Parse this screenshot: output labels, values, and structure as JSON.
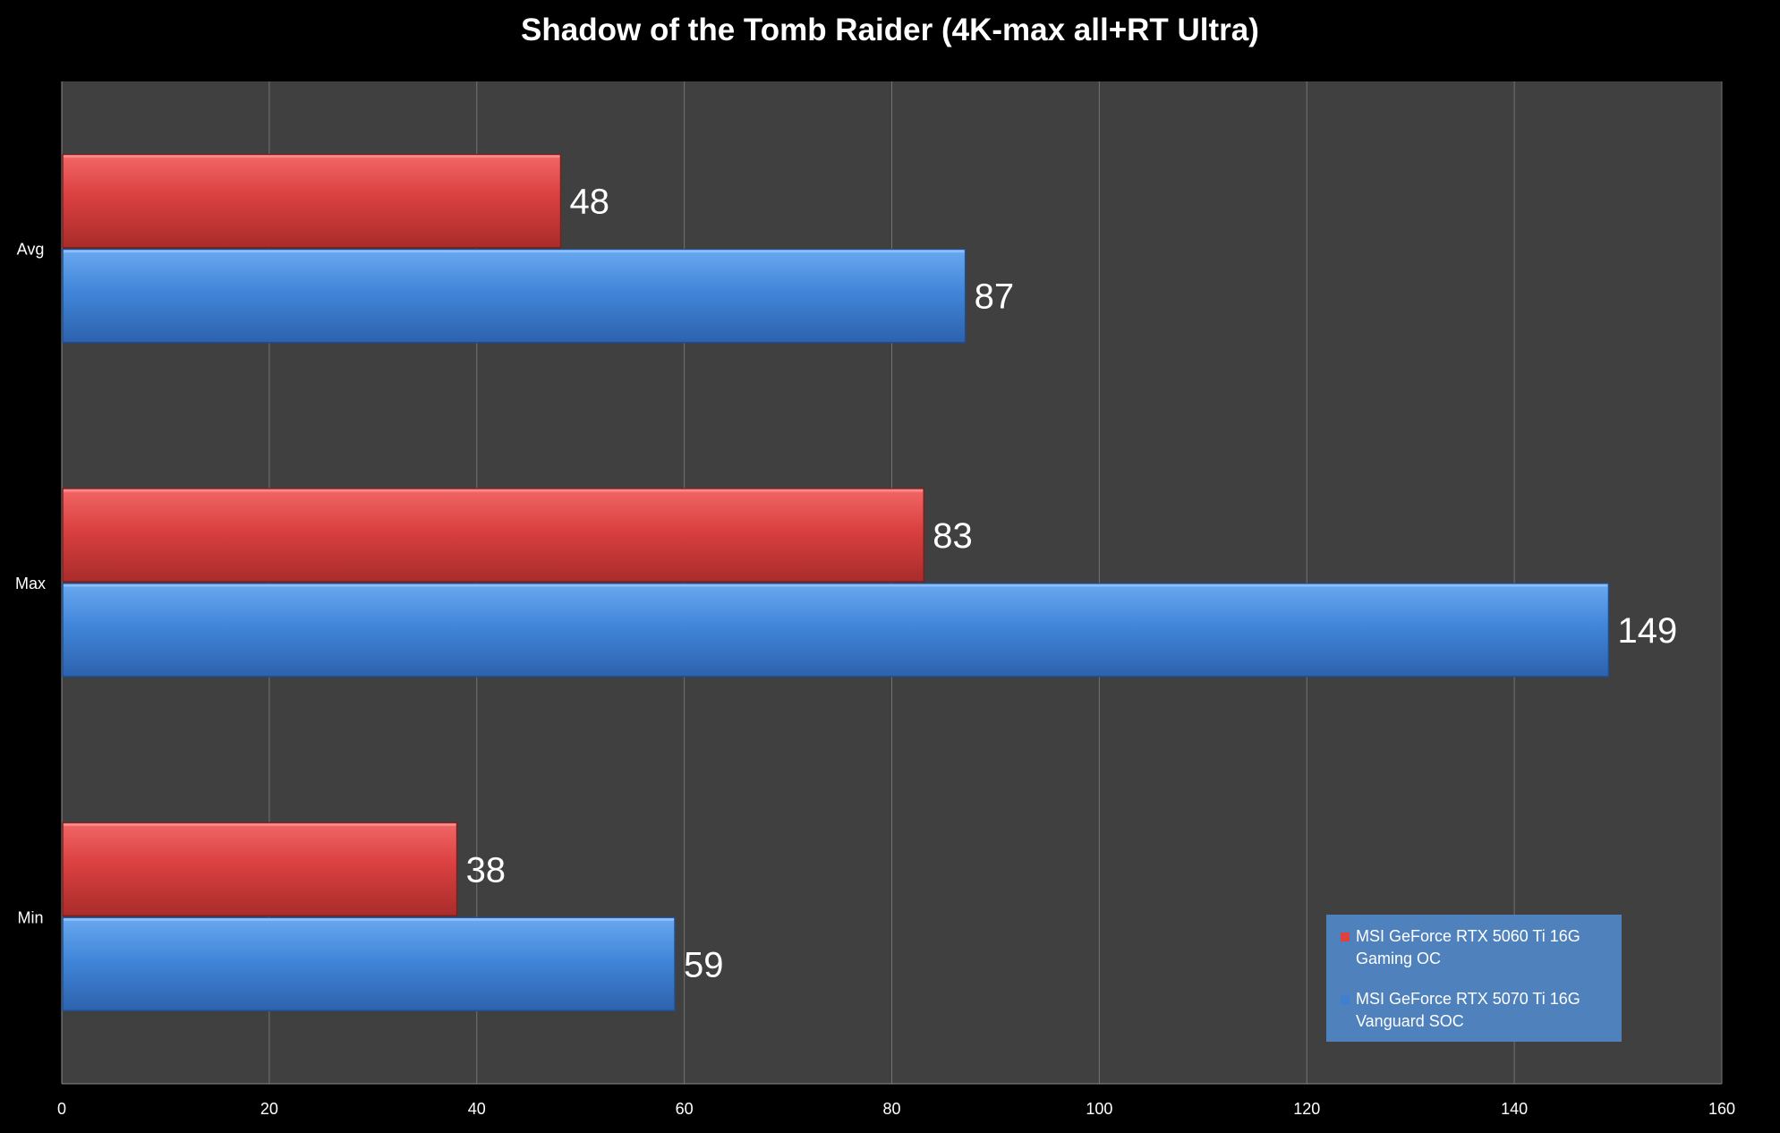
{
  "chart_data": {
    "type": "bar",
    "orientation": "horizontal",
    "title": "Shadow of the Tomb Raider (4K-max all+RT Ultra)",
    "xlabel": "",
    "ylabel": "",
    "categories": [
      "Avg",
      "Max",
      "Min"
    ],
    "series": [
      {
        "name": "MSI GeForce RTX 5060 Ti 16G Gaming OC",
        "color": "#e0413e",
        "values": [
          48,
          83,
          38
        ]
      },
      {
        "name": "MSI GeForce RTX 5070 Ti 16G Vanguard SOC",
        "color": "#3f7fd0",
        "values": [
          87,
          149,
          59
        ]
      }
    ],
    "xlim": [
      0,
      160
    ],
    "xticks": [
      "0",
      "20",
      "40",
      "60",
      "80",
      "100",
      "120",
      "140",
      "160"
    ],
    "grid": true,
    "legend_position": "bottom-right",
    "colors": {
      "background": "#000000",
      "plot_area": "#404040",
      "gridline": "#6f6f6f",
      "legend_bg": "#4f81bd"
    }
  }
}
